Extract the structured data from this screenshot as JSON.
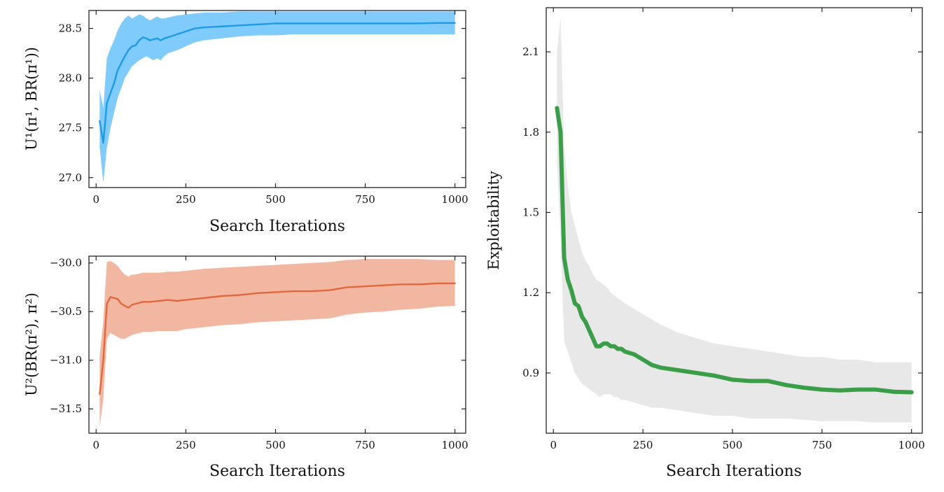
{
  "chart_data": [
    {
      "type": "line",
      "title": "",
      "xlabel": "Search Iterations",
      "ylabel": "U¹(π¹, BR(π¹))",
      "xlim": [
        -20,
        1030
      ],
      "ylim": [
        26.9,
        28.68
      ],
      "xticks": [
        0,
        250,
        500,
        750,
        1000
      ],
      "yticks": [
        27.0,
        27.5,
        28.0,
        28.5
      ],
      "x": [
        10,
        20,
        30,
        40,
        50,
        60,
        70,
        80,
        90,
        100,
        110,
        120,
        130,
        140,
        150,
        160,
        170,
        180,
        190,
        200,
        225,
        250,
        275,
        300,
        350,
        400,
        450,
        500,
        550,
        600,
        650,
        700,
        750,
        800,
        850,
        900,
        950,
        1000
      ],
      "series": [
        {
          "name": "",
          "color": "#1e9ae6",
          "band_color": "#7fcbfb",
          "values": [
            27.57,
            27.35,
            27.75,
            27.85,
            27.95,
            28.08,
            28.15,
            28.22,
            28.28,
            28.32,
            28.33,
            28.38,
            28.41,
            28.4,
            28.38,
            28.39,
            28.4,
            28.38,
            28.4,
            28.41,
            28.44,
            28.47,
            28.5,
            28.51,
            28.52,
            28.53,
            28.54,
            28.55,
            28.55,
            28.55,
            28.55,
            28.55,
            28.55,
            28.55,
            28.55,
            28.55,
            28.555,
            28.555
          ],
          "lower": [
            27.3,
            26.95,
            27.3,
            27.5,
            27.65,
            27.8,
            27.9,
            28.0,
            28.06,
            28.12,
            28.15,
            28.18,
            28.2,
            28.22,
            28.2,
            28.18,
            28.2,
            28.18,
            28.22,
            28.25,
            28.28,
            28.32,
            28.36,
            28.38,
            28.4,
            28.42,
            28.43,
            28.43,
            28.44,
            28.44,
            28.44,
            28.44,
            28.44,
            28.44,
            28.44,
            28.44,
            28.44,
            28.44
          ],
          "upper": [
            27.88,
            27.7,
            28.2,
            28.3,
            28.38,
            28.48,
            28.55,
            28.6,
            28.63,
            28.6,
            28.62,
            28.64,
            28.63,
            28.6,
            28.58,
            28.6,
            28.62,
            28.6,
            28.6,
            28.61,
            28.63,
            28.64,
            28.65,
            28.66,
            28.66,
            28.67,
            28.67,
            28.67,
            28.67,
            28.67,
            28.67,
            28.67,
            28.67,
            28.67,
            28.67,
            28.67,
            28.67,
            28.67
          ]
        }
      ]
    },
    {
      "type": "line",
      "title": "",
      "xlabel": "Search Iterations",
      "ylabel": "U²(BR(π²), π²)",
      "xlim": [
        -20,
        1030
      ],
      "ylim": [
        -31.75,
        -29.93
      ],
      "xticks": [
        0,
        250,
        500,
        750,
        1000
      ],
      "yticks": [
        -30.0,
        -30.5,
        -31.0,
        -31.5
      ],
      "ytick_labels": [
        "−30.0",
        "−30.5",
        "−31.0",
        "−31.5"
      ],
      "x": [
        10,
        20,
        30,
        40,
        50,
        60,
        70,
        80,
        90,
        100,
        110,
        120,
        130,
        150,
        175,
        200,
        225,
        250,
        275,
        300,
        350,
        400,
        450,
        500,
        550,
        600,
        650,
        700,
        750,
        800,
        850,
        900,
        950,
        1000
      ],
      "series": [
        {
          "name": "",
          "color": "#e4663f",
          "band_color": "#f2b7a1",
          "values": [
            -31.35,
            -31.0,
            -30.42,
            -30.35,
            -30.36,
            -30.37,
            -30.42,
            -30.44,
            -30.46,
            -30.43,
            -30.42,
            -30.41,
            -30.4,
            -30.4,
            -30.39,
            -30.38,
            -30.39,
            -30.38,
            -30.37,
            -30.36,
            -30.34,
            -30.33,
            -30.31,
            -30.3,
            -30.29,
            -30.29,
            -30.28,
            -30.25,
            -30.24,
            -30.23,
            -30.22,
            -30.22,
            -30.21,
            -30.21
          ],
          "lower": [
            -31.68,
            -31.4,
            -30.78,
            -30.72,
            -30.74,
            -30.76,
            -30.78,
            -30.78,
            -30.76,
            -30.74,
            -30.73,
            -30.72,
            -30.71,
            -30.71,
            -30.7,
            -30.7,
            -30.7,
            -30.68,
            -30.67,
            -30.66,
            -30.64,
            -30.63,
            -30.61,
            -30.6,
            -30.59,
            -30.58,
            -30.57,
            -30.53,
            -30.51,
            -30.5,
            -30.48,
            -30.47,
            -30.45,
            -30.44
          ],
          "upper": [
            -30.95,
            -30.6,
            -29.99,
            -29.98,
            -30.0,
            -30.03,
            -30.08,
            -30.12,
            -30.14,
            -30.12,
            -30.12,
            -30.11,
            -30.1,
            -30.1,
            -30.1,
            -30.09,
            -30.09,
            -30.08,
            -30.07,
            -30.06,
            -30.05,
            -30.04,
            -30.03,
            -30.02,
            -30.01,
            -30.0,
            -29.99,
            -29.97,
            -29.96,
            -29.96,
            -29.96,
            -29.96,
            -29.97,
            -29.97
          ]
        }
      ]
    },
    {
      "type": "line",
      "title": "",
      "xlabel": "Search Iterations",
      "ylabel": "Exploitability",
      "xlim": [
        -20,
        1030
      ],
      "ylim": [
        0.675,
        2.265
      ],
      "xticks": [
        0,
        250,
        500,
        750,
        1000
      ],
      "yticks": [
        0.9,
        1.2,
        1.5,
        1.8,
        2.1
      ],
      "x": [
        10,
        20,
        30,
        40,
        50,
        60,
        70,
        80,
        90,
        100,
        110,
        120,
        130,
        140,
        150,
        160,
        170,
        180,
        190,
        200,
        225,
        250,
        275,
        300,
        350,
        400,
        450,
        500,
        550,
        600,
        650,
        700,
        750,
        800,
        850,
        900,
        950,
        1000
      ],
      "series": [
        {
          "name": "",
          "color": "#3a9e48",
          "band_color": "#e8e8e8",
          "values": [
            1.89,
            1.8,
            1.33,
            1.25,
            1.21,
            1.16,
            1.15,
            1.11,
            1.09,
            1.06,
            1.03,
            1.0,
            1.0,
            1.01,
            1.01,
            1.0,
            1.0,
            0.99,
            0.99,
            0.98,
            0.97,
            0.95,
            0.93,
            0.92,
            0.91,
            0.9,
            0.89,
            0.875,
            0.87,
            0.87,
            0.855,
            0.845,
            0.838,
            0.835,
            0.838,
            0.838,
            0.83,
            0.828
          ],
          "lower": [
            1.7,
            1.4,
            1.02,
            0.98,
            0.94,
            0.9,
            0.88,
            0.86,
            0.85,
            0.84,
            0.83,
            0.82,
            0.81,
            0.82,
            0.82,
            0.82,
            0.81,
            0.81,
            0.8,
            0.8,
            0.79,
            0.78,
            0.77,
            0.77,
            0.76,
            0.75,
            0.74,
            0.74,
            0.73,
            0.73,
            0.73,
            0.725,
            0.72,
            0.72,
            0.72,
            0.715,
            0.715,
            0.715
          ],
          "upper": [
            2.1,
            2.23,
            1.75,
            1.6,
            1.5,
            1.45,
            1.4,
            1.35,
            1.32,
            1.3,
            1.27,
            1.25,
            1.24,
            1.23,
            1.22,
            1.2,
            1.19,
            1.18,
            1.17,
            1.16,
            1.14,
            1.12,
            1.1,
            1.08,
            1.05,
            1.03,
            1.01,
            1.0,
            0.99,
            0.98,
            0.97,
            0.96,
            0.96,
            0.95,
            0.95,
            0.94,
            0.94,
            0.94
          ]
        }
      ]
    }
  ]
}
